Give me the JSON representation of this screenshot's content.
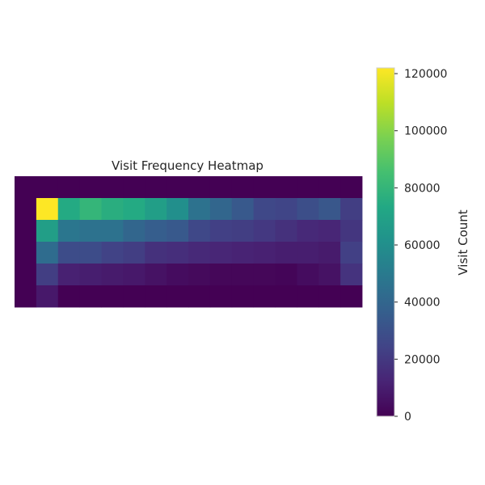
{
  "chart_data": {
    "type": "heatmap",
    "title": "Visit Frequency Heatmap",
    "colorbar_label": "Visit Count",
    "colormap": "viridis",
    "value_range": [
      0,
      122000
    ],
    "colorbar_ticks": [
      0,
      20000,
      40000,
      60000,
      80000,
      100000,
      120000
    ],
    "colorbar_tick_labels": [
      "0",
      "20000",
      "40000",
      "60000",
      "80000",
      "100000",
      "120000"
    ],
    "rows": 6,
    "cols": 16,
    "values": [
      [
        0,
        0,
        0,
        0,
        0,
        0,
        0,
        0,
        0,
        0,
        0,
        0,
        0,
        0,
        0,
        0
      ],
      [
        0,
        122000,
        74000,
        80000,
        76000,
        74000,
        68000,
        60000,
        46000,
        40000,
        34000,
        26000,
        25000,
        29000,
        33000,
        22000
      ],
      [
        0,
        68000,
        48000,
        46000,
        46000,
        40000,
        36000,
        34000,
        26000,
        23000,
        22000,
        20000,
        17000,
        14000,
        13000,
        19000
      ],
      [
        0,
        43000,
        28000,
        28000,
        24000,
        22000,
        17000,
        16000,
        14000,
        13000,
        12000,
        11000,
        10000,
        10000,
        9000,
        23000
      ],
      [
        0,
        22000,
        11000,
        10000,
        9000,
        8000,
        6000,
        4000,
        3000,
        2000,
        2000,
        2000,
        1500,
        4000,
        6000,
        18000
      ],
      [
        0,
        8000,
        0,
        0,
        0,
        0,
        0,
        0,
        0,
        0,
        0,
        0,
        0,
        0,
        0,
        0
      ]
    ]
  }
}
